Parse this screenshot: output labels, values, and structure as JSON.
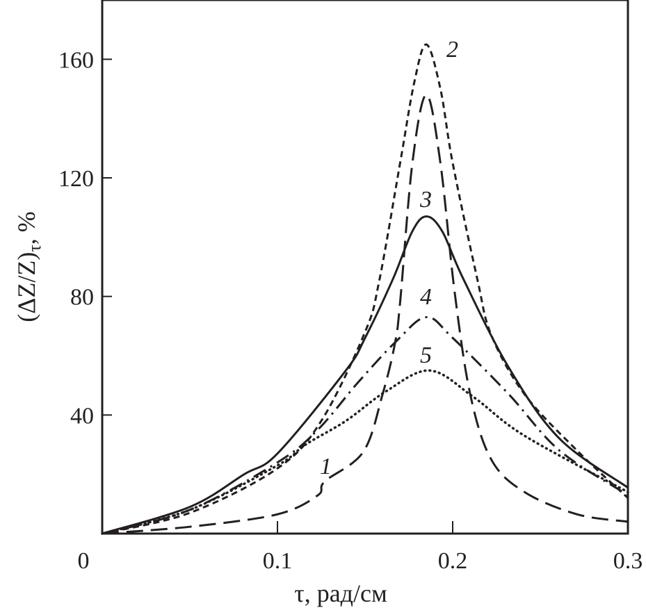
{
  "chart_data": {
    "type": "line",
    "title": "",
    "xlabel": "τ, рад/см",
    "ylabel_main": "(ΔZ/Z)",
    "ylabel_sub": "τ",
    "ylabel_suffix": ", %",
    "xlim": [
      0,
      0.3
    ],
    "ylim": [
      0,
      180
    ],
    "x_ticks": [
      0,
      0.1,
      0.2,
      0.3
    ],
    "x_tick_labels": [
      "0",
      "0.1",
      "0.2",
      "0.3"
    ],
    "y_ticks": [
      40,
      80,
      120,
      160
    ],
    "y_tick_labels": [
      "40",
      "80",
      "120",
      "160"
    ],
    "grid": false,
    "legend": "none (curves labelled inline)",
    "color": "#231f20",
    "series": [
      {
        "name": "1",
        "style": "long-dash",
        "x": [
          0,
          0.05,
          0.1,
          0.123,
          0.127,
          0.149,
          0.16,
          0.167,
          0.17,
          0.177,
          0.185,
          0.193,
          0.201,
          0.21,
          0.222,
          0.241,
          0.271,
          0.3
        ],
        "y": [
          0,
          2.3,
          6.5,
          12.9,
          17.6,
          27.6,
          47,
          64,
          78,
          125,
          148,
          125,
          82,
          47,
          25,
          14,
          6.5,
          4
        ]
      },
      {
        "name": "2",
        "style": "short-dash",
        "x": [
          0,
          0.05,
          0.1,
          0.125,
          0.15,
          0.158,
          0.17,
          0.178,
          0.185,
          0.193,
          0.2,
          0.214,
          0.222,
          0.241,
          0.271,
          0.3
        ],
        "y": [
          0,
          7,
          22,
          38,
          68,
          85,
          125,
          152,
          165,
          150,
          125,
          86,
          67,
          47,
          28,
          12
        ]
      },
      {
        "name": "3",
        "style": "solid",
        "x": [
          0,
          0.05,
          0.081,
          0.1,
          0.139,
          0.15,
          0.166,
          0.177,
          0.185,
          0.194,
          0.206,
          0.232,
          0.261,
          0.3
        ],
        "y": [
          0,
          9,
          20,
          27,
          55,
          66,
          86,
          102,
          107,
          102,
          86,
          56,
          32,
          15.5
        ]
      },
      {
        "name": "4",
        "style": "dash-dot",
        "x": [
          0,
          0.05,
          0.1,
          0.123,
          0.146,
          0.168,
          0.185,
          0.2,
          0.232,
          0.261,
          0.3
        ],
        "y": [
          0,
          8,
          24,
          35,
          51,
          65,
          73,
          66,
          47,
          28,
          13
        ]
      },
      {
        "name": "5",
        "style": "dotted",
        "x": [
          0,
          0.05,
          0.1,
          0.116,
          0.139,
          0.162,
          0.187,
          0.212,
          0.241,
          0.3
        ],
        "y": [
          0,
          8,
          23,
          30,
          38,
          48,
          55,
          46,
          33,
          14
        ]
      }
    ]
  }
}
